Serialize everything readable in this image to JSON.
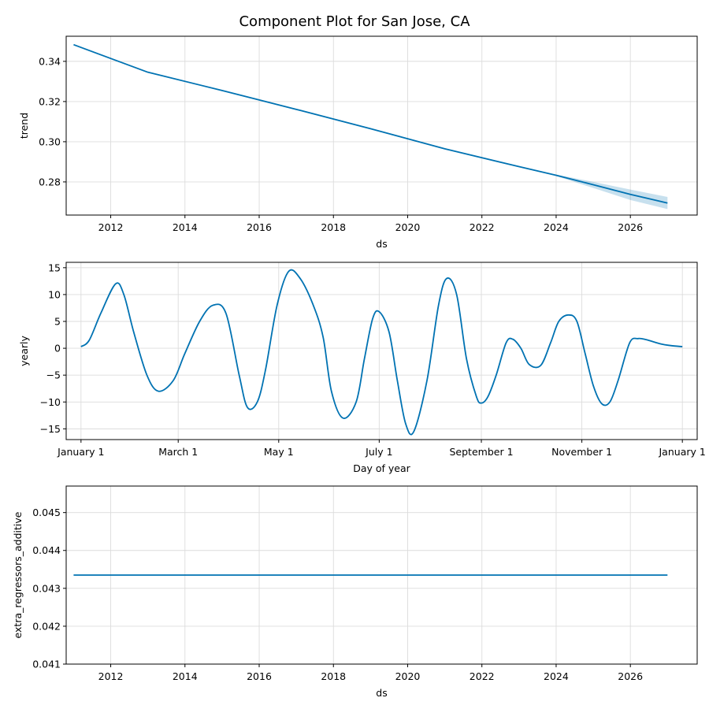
{
  "figure": {
    "title": "Component Plot for San Jose, CA",
    "line_color": "#0072B2",
    "band_color": "#0072B2"
  },
  "chart_data": [
    {
      "type": "line",
      "name": "trend-panel",
      "xlabel": "ds",
      "ylabel": "trend",
      "xlim": [
        2010.8,
        2027.8
      ],
      "ylim": [
        0.2635,
        0.3525
      ],
      "grid": true,
      "x_ticks": [
        2012,
        2014,
        2016,
        2018,
        2020,
        2022,
        2024,
        2026
      ],
      "x_tick_labels": [
        "2012",
        "2014",
        "2016",
        "2018",
        "2020",
        "2022",
        "2024",
        "2026"
      ],
      "y_ticks": [
        0.28,
        0.3,
        0.32,
        0.34
      ],
      "y_tick_labels": [
        "0.28",
        "0.30",
        "0.32",
        "0.34"
      ],
      "x": [
        2011.0,
        2013.0,
        2015.0,
        2017.0,
        2019.0,
        2021.0,
        2023.0,
        2024.0,
        2025.0,
        2026.0,
        2027.0
      ],
      "y": [
        0.3483,
        0.3346,
        0.3255,
        0.3161,
        0.3065,
        0.2965,
        0.2876,
        0.2833,
        0.2786,
        0.2738,
        0.2695
      ],
      "band": {
        "x": [
          2024.0,
          2025.0,
          2026.0,
          2027.0
        ],
        "lower": [
          0.2829,
          0.277,
          0.271,
          0.2665
        ],
        "upper": [
          0.2837,
          0.28,
          0.2762,
          0.2725
        ]
      }
    },
    {
      "type": "line",
      "name": "yearly-panel",
      "xlabel": "Day of year",
      "ylabel": "yearly",
      "xlim": [
        -9,
        374
      ],
      "ylim": [
        -17,
        16
      ],
      "grid": true,
      "x_ticks": [
        0,
        59,
        120,
        181,
        243,
        304,
        365
      ],
      "x_tick_labels": [
        "January 1",
        "March 1",
        "May 1",
        "July 1",
        "September 1",
        "November 1",
        "January 1"
      ],
      "y_ticks": [
        -15,
        -10,
        -5,
        0,
        5,
        10,
        15
      ],
      "y_tick_labels": [
        "−15",
        "−10",
        "−5",
        "0",
        "5",
        "10",
        "15"
      ],
      "x": [
        0,
        5,
        12,
        21,
        26,
        32,
        40,
        47,
        56,
        63,
        72,
        80,
        88,
        96,
        101,
        107,
        112,
        119,
        126,
        133,
        141,
        147,
        152,
        159,
        167,
        172,
        177,
        181,
        187,
        192,
        197,
        202,
        210,
        217,
        222,
        228,
        234,
        240,
        243,
        247,
        252,
        258,
        262,
        267,
        272,
        279,
        285,
        290,
        296,
        301,
        306,
        311,
        316,
        321,
        326,
        333,
        338,
        343,
        352,
        358,
        365
      ],
      "y": [
        0.3,
        1.5,
        6.5,
        12.0,
        10.0,
        3.0,
        -5.0,
        -8.0,
        -6.0,
        -1.0,
        5.0,
        8.0,
        6.5,
        -5.0,
        -11.0,
        -10.0,
        -4.0,
        8.0,
        14.3,
        13.0,
        8.0,
        2.0,
        -8.0,
        -13.0,
        -10.0,
        -2.0,
        5.5,
        6.8,
        3.0,
        -6.0,
        -14.0,
        -15.5,
        -6.0,
        8.0,
        13.0,
        10.0,
        -2.0,
        -9.0,
        -10.2,
        -9.0,
        -5.0,
        1.0,
        1.7,
        0.0,
        -3.0,
        -3.2,
        1.0,
        5.0,
        6.2,
        5.0,
        -1.0,
        -7.0,
        -10.3,
        -10.0,
        -6.0,
        1.0,
        1.8,
        1.6,
        0.8,
        0.5,
        0.3
      ]
    },
    {
      "type": "line",
      "name": "extra-regressors-panel",
      "xlabel": "ds",
      "ylabel": "extra_regressors_additive",
      "xlim": [
        2010.8,
        2027.8
      ],
      "ylim": [
        0.041,
        0.0457
      ],
      "grid": true,
      "x_ticks": [
        2012,
        2014,
        2016,
        2018,
        2020,
        2022,
        2024,
        2026
      ],
      "x_tick_labels": [
        "2012",
        "2014",
        "2016",
        "2018",
        "2020",
        "2022",
        "2024",
        "2026"
      ],
      "y_ticks": [
        0.041,
        0.042,
        0.043,
        0.044,
        0.045
      ],
      "y_tick_labels": [
        "0.041",
        "0.042",
        "0.043",
        "0.044",
        "0.045"
      ],
      "x": [
        2011.0,
        2027.0
      ],
      "y": [
        0.04335,
        0.04335
      ]
    }
  ]
}
